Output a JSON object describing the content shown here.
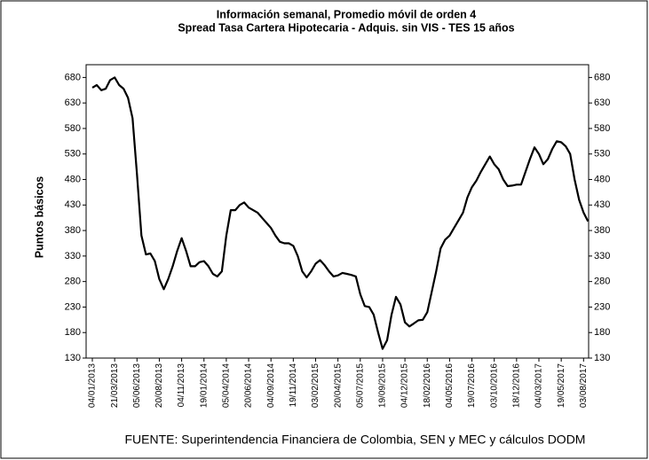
{
  "chart_data": {
    "type": "line",
    "title": "Información semanal, Promedio móvil de orden 4",
    "subtitle": "Spread Tasa Cartera Hipotecaria - Adquis. sin VIS -  TES 15 años",
    "y_label": "Puntos básicos",
    "source": "FUENTE: Superintendencia Financiera de Colombia, SEN y MEC y cálculos DODM",
    "categories": [
      "04/01/2013",
      null,
      null,
      null,
      null,
      "21/03/2013",
      null,
      null,
      null,
      null,
      "05/06/2013",
      null,
      null,
      null,
      null,
      "20/08/2013",
      null,
      null,
      null,
      null,
      "04/11/2013",
      null,
      null,
      null,
      null,
      "19/01/2014",
      null,
      null,
      null,
      null,
      "05/04/2014",
      null,
      null,
      null,
      null,
      "20/06/2014",
      null,
      null,
      null,
      null,
      "04/09/2014",
      null,
      null,
      null,
      null,
      "19/11/2014",
      null,
      null,
      null,
      null,
      "03/02/2015",
      null,
      null,
      null,
      null,
      "20/04/2015",
      null,
      null,
      null,
      null,
      "05/07/2015",
      null,
      null,
      null,
      null,
      "19/09/2015",
      null,
      null,
      null,
      null,
      "04/12/2015",
      null,
      null,
      null,
      null,
      "18/02/2016",
      null,
      null,
      null,
      null,
      "04/05/2016",
      null,
      null,
      null,
      null,
      "19/07/2016",
      null,
      null,
      null,
      null,
      "03/10/2016",
      null,
      null,
      null,
      null,
      "18/12/2016",
      null,
      null,
      null,
      null,
      "04/03/2017",
      null,
      null,
      null,
      null,
      "19/05/2017",
      null,
      null,
      null,
      null,
      "03/08/2017",
      null
    ],
    "series": [
      {
        "name": "Spread",
        "color": "#000000",
        "values": [
          660,
          665,
          655,
          658,
          675,
          680,
          665,
          658,
          640,
          600,
          490,
          370,
          333,
          335,
          320,
          285,
          265,
          285,
          310,
          340,
          365,
          340,
          310,
          310,
          318,
          320,
          310,
          295,
          290,
          300,
          370,
          420,
          420,
          430,
          435,
          425,
          420,
          415,
          405,
          395,
          385,
          370,
          358,
          355,
          355,
          350,
          330,
          300,
          288,
          300,
          315,
          322,
          312,
          300,
          290,
          292,
          297,
          295,
          293,
          290,
          255,
          232,
          230,
          215,
          180,
          148,
          165,
          215,
          250,
          235,
          200,
          192,
          198,
          204,
          205,
          220,
          260,
          300,
          345,
          362,
          370,
          385,
          400,
          415,
          445,
          465,
          478,
          495,
          510,
          525,
          510,
          500,
          480,
          467,
          468,
          470,
          470,
          495,
          520,
          543,
          530,
          510,
          520,
          540,
          555,
          553,
          545,
          530,
          480,
          440,
          415,
          398
        ]
      }
    ],
    "ylim": [
      130,
      705
    ],
    "yticks": [
      130,
      180,
      230,
      280,
      330,
      380,
      430,
      480,
      530,
      580,
      630,
      680
    ],
    "grid": false
  }
}
